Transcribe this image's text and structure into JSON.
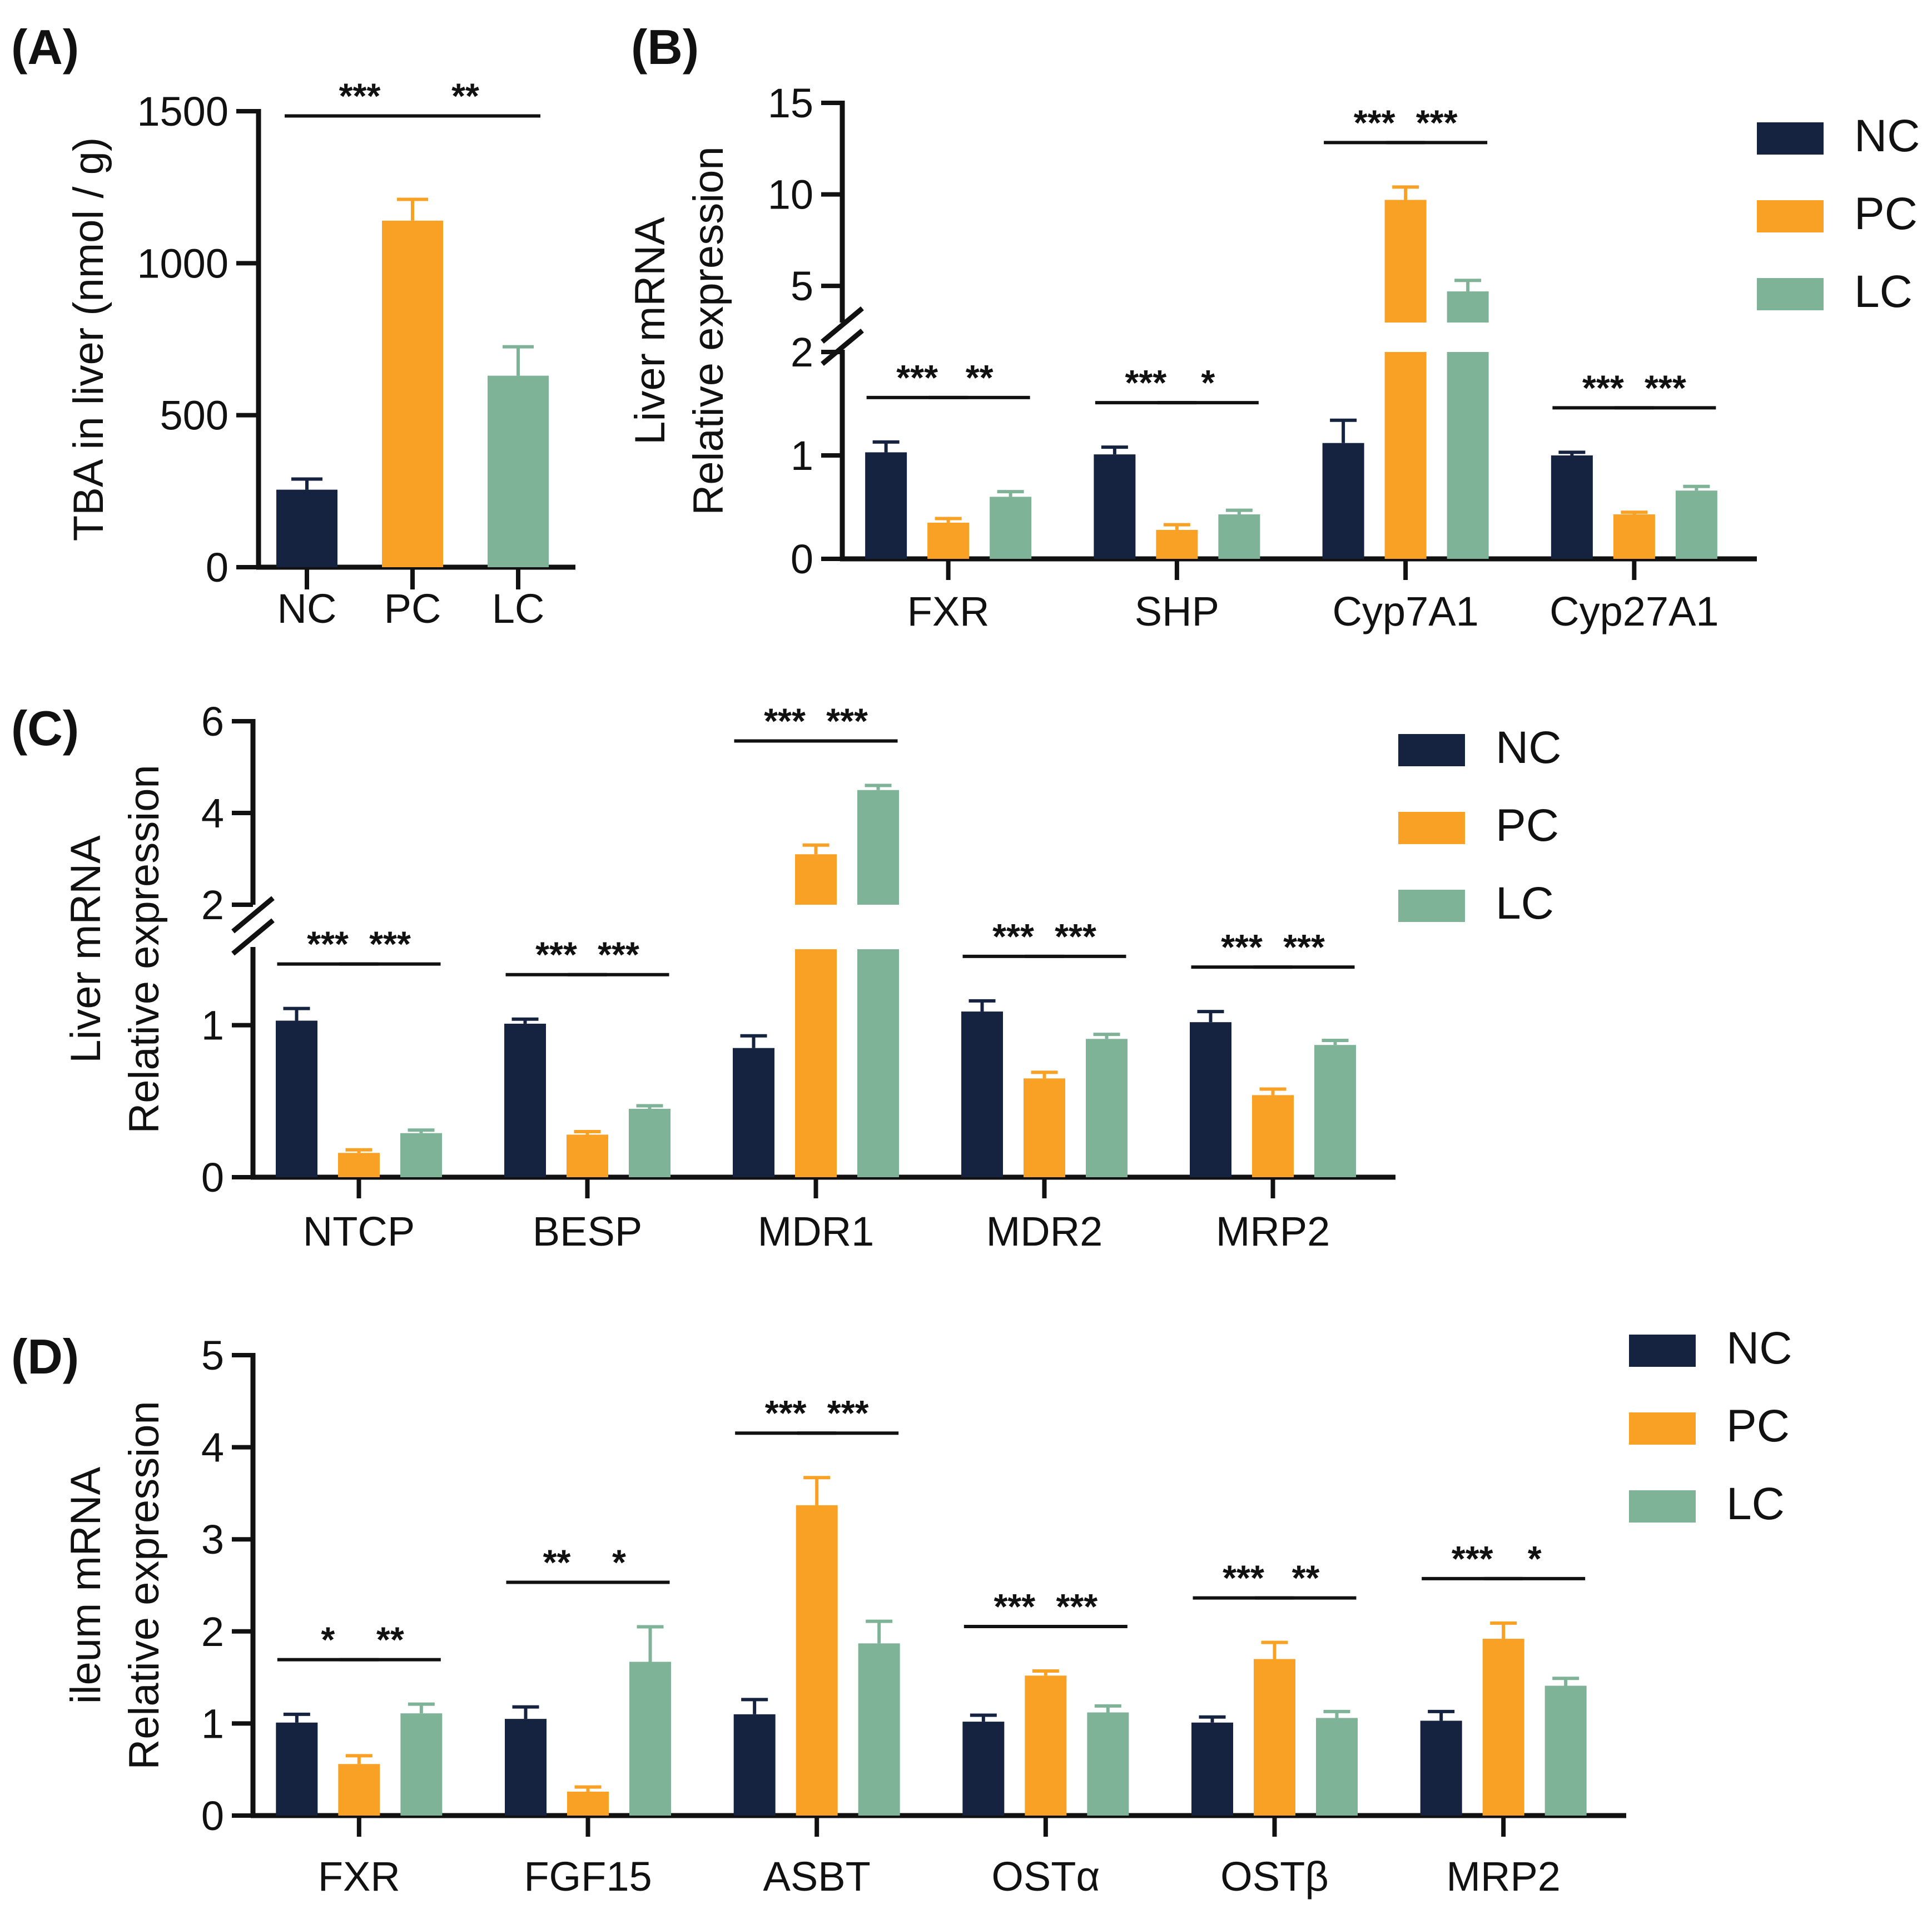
{
  "colors": {
    "NC": "#162340",
    "PC": "#F8A124",
    "LC": "#7FB398",
    "axis": "#111111"
  },
  "chart_data": [
    {
      "id": "A",
      "panel_label": "(A)",
      "type": "bar",
      "title": "",
      "ylabel_lines": [
        "TBA in liver (nmol / g)"
      ],
      "ylim": [
        0,
        1500
      ],
      "yticks": [
        0,
        500,
        1000,
        1500
      ],
      "ytick_labels": [
        "0",
        "500",
        "1000",
        "1500"
      ],
      "grouping": "single",
      "categories": [
        "NC",
        "PC",
        "LC"
      ],
      "series": [
        {
          "name": "TBA",
          "values": [
            255,
            1140,
            630
          ],
          "errors": [
            35,
            70,
            95
          ],
          "colors": [
            "NC",
            "PC",
            "LC"
          ]
        }
      ],
      "significance": [
        {
          "group": 0,
          "pair": [
            0,
            1
          ],
          "label": "***"
        },
        {
          "group": 0,
          "pair": [
            1,
            2
          ],
          "label": "**"
        }
      ]
    },
    {
      "id": "B",
      "panel_label": "(B)",
      "type": "bar",
      "title": "",
      "ylabel_lines": [
        "Liver mRNA",
        "Relative expression"
      ],
      "broken_axis": {
        "lower": [
          0,
          2
        ],
        "upper": [
          3,
          15
        ]
      },
      "yticks": [
        0,
        1,
        2,
        5,
        10,
        15
      ],
      "ytick_labels": [
        "0",
        "1",
        "2",
        "5",
        "10",
        "15"
      ],
      "grouping": "grouped",
      "categories": [
        "FXR",
        "SHP",
        "Cyp7A1",
        "Cyp27A1"
      ],
      "series": [
        {
          "name": "NC",
          "values": [
            1.03,
            1.01,
            1.12,
            1.0
          ],
          "errors": [
            0.1,
            0.07,
            0.22,
            0.03
          ]
        },
        {
          "name": "PC",
          "values": [
            0.35,
            0.28,
            9.7,
            0.43
          ],
          "errors": [
            0.04,
            0.05,
            0.7,
            0.02
          ]
        },
        {
          "name": "LC",
          "values": [
            0.6,
            0.43,
            4.7,
            0.66
          ],
          "errors": [
            0.05,
            0.04,
            0.6,
            0.04
          ]
        }
      ],
      "legend": {
        "position": "top-right",
        "entries": [
          "NC",
          "PC",
          "LC"
        ]
      },
      "significance": [
        {
          "group": 0,
          "pair": [
            0,
            1
          ],
          "label": "***"
        },
        {
          "group": 0,
          "pair": [
            1,
            2
          ],
          "label": "**"
        },
        {
          "group": 1,
          "pair": [
            0,
            1
          ],
          "label": "***"
        },
        {
          "group": 1,
          "pair": [
            1,
            2
          ],
          "label": "*"
        },
        {
          "group": 2,
          "pair": [
            0,
            1
          ],
          "label": "***"
        },
        {
          "group": 2,
          "pair": [
            1,
            2
          ],
          "label": "***"
        },
        {
          "group": 3,
          "pair": [
            0,
            1
          ],
          "label": "***"
        },
        {
          "group": 3,
          "pair": [
            1,
            2
          ],
          "label": "***"
        }
      ]
    },
    {
      "id": "C",
      "panel_label": "(C)",
      "type": "bar",
      "title": "",
      "ylabel_lines": [
        "Liver mRNA",
        "Relative expression"
      ],
      "broken_axis": {
        "lower": [
          0,
          1.5
        ],
        "upper": [
          2,
          6
        ]
      },
      "yticks": [
        0,
        1,
        2,
        4,
        6
      ],
      "ytick_labels": [
        "0",
        "1",
        "2",
        "4",
        "6"
      ],
      "grouping": "grouped",
      "categories": [
        "NTCP",
        "BESP",
        "MDR1",
        "MDR2",
        "MRP2"
      ],
      "series": [
        {
          "name": "NC",
          "values": [
            1.03,
            1.01,
            0.85,
            1.09,
            1.02
          ],
          "errors": [
            0.08,
            0.03,
            0.08,
            0.07,
            0.07
          ]
        },
        {
          "name": "PC",
          "values": [
            0.16,
            0.28,
            3.1,
            0.65,
            0.54
          ],
          "errors": [
            0.02,
            0.02,
            0.2,
            0.04,
            0.04
          ]
        },
        {
          "name": "LC",
          "values": [
            0.29,
            0.45,
            4.5,
            0.91,
            0.87
          ],
          "errors": [
            0.02,
            0.02,
            0.1,
            0.03,
            0.03
          ]
        }
      ],
      "legend": {
        "position": "top-right",
        "entries": [
          "NC",
          "PC",
          "LC"
        ]
      },
      "significance": [
        {
          "group": 0,
          "pair": [
            0,
            1
          ],
          "label": "***"
        },
        {
          "group": 0,
          "pair": [
            1,
            2
          ],
          "label": "***"
        },
        {
          "group": 1,
          "pair": [
            0,
            1
          ],
          "label": "***"
        },
        {
          "group": 1,
          "pair": [
            1,
            2
          ],
          "label": "***"
        },
        {
          "group": 2,
          "pair": [
            0,
            1
          ],
          "label": "***"
        },
        {
          "group": 2,
          "pair": [
            1,
            2
          ],
          "label": "***"
        },
        {
          "group": 3,
          "pair": [
            0,
            1
          ],
          "label": "***"
        },
        {
          "group": 3,
          "pair": [
            1,
            2
          ],
          "label": "***"
        },
        {
          "group": 4,
          "pair": [
            0,
            1
          ],
          "label": "***"
        },
        {
          "group": 4,
          "pair": [
            1,
            2
          ],
          "label": "***"
        }
      ]
    },
    {
      "id": "D",
      "panel_label": "(D)",
      "type": "bar",
      "title": "",
      "ylabel_lines": [
        "ileum mRNA",
        "Relative expression"
      ],
      "ylim": [
        0,
        5
      ],
      "yticks": [
        0,
        1,
        2,
        3,
        4,
        5
      ],
      "ytick_labels": [
        "0",
        "1",
        "2",
        "3",
        "4",
        "5"
      ],
      "grouping": "grouped",
      "categories": [
        "FXR",
        "FGF15",
        "ASBT",
        "OSTα",
        "OSTβ",
        "MRP2"
      ],
      "series": [
        {
          "name": "NC",
          "values": [
            1.01,
            1.05,
            1.1,
            1.02,
            1.01,
            1.03
          ],
          "errors": [
            0.09,
            0.13,
            0.16,
            0.07,
            0.06,
            0.1
          ]
        },
        {
          "name": "PC",
          "values": [
            0.56,
            0.26,
            3.37,
            1.52,
            1.7,
            1.92
          ],
          "errors": [
            0.09,
            0.05,
            0.3,
            0.05,
            0.18,
            0.17
          ]
        },
        {
          "name": "LC",
          "values": [
            1.11,
            1.67,
            1.87,
            1.12,
            1.06,
            1.41
          ],
          "errors": [
            0.1,
            0.38,
            0.24,
            0.07,
            0.07,
            0.08
          ]
        }
      ],
      "legend": {
        "position": "top-right",
        "entries": [
          "NC",
          "PC",
          "LC"
        ]
      },
      "significance": [
        {
          "group": 0,
          "pair": [
            0,
            1
          ],
          "label": "*"
        },
        {
          "group": 0,
          "pair": [
            1,
            2
          ],
          "label": "**"
        },
        {
          "group": 1,
          "pair": [
            0,
            1
          ],
          "label": "**"
        },
        {
          "group": 1,
          "pair": [
            1,
            2
          ],
          "label": "*"
        },
        {
          "group": 2,
          "pair": [
            0,
            1
          ],
          "label": "***"
        },
        {
          "group": 2,
          "pair": [
            1,
            2
          ],
          "label": "***"
        },
        {
          "group": 3,
          "pair": [
            0,
            1
          ],
          "label": "***"
        },
        {
          "group": 3,
          "pair": [
            1,
            2
          ],
          "label": "***"
        },
        {
          "group": 4,
          "pair": [
            0,
            1
          ],
          "label": "***"
        },
        {
          "group": 4,
          "pair": [
            1,
            2
          ],
          "label": "**"
        },
        {
          "group": 5,
          "pair": [
            0,
            1
          ],
          "label": "***"
        },
        {
          "group": 5,
          "pair": [
            1,
            2
          ],
          "label": "*"
        }
      ]
    }
  ]
}
